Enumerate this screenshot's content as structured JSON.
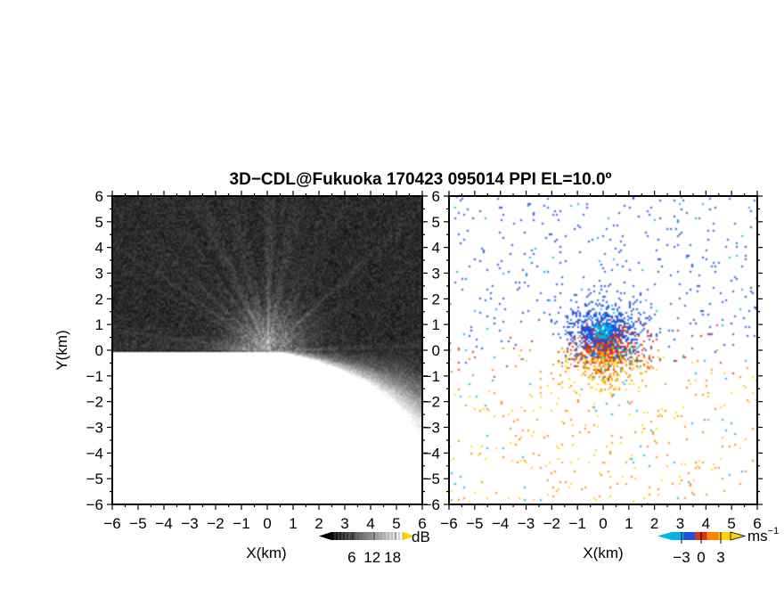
{
  "title": "3D−CDL@Fukuoka 170423 095014 PPI EL=10.0º",
  "chart_data": [
    {
      "type": "heatmap",
      "panel": "left",
      "quantity": "backscatter intensity",
      "xlabel": "X(km)",
      "ylabel": "Y(km)",
      "xlim": [
        -6,
        6
      ],
      "ylim": [
        -6,
        6
      ],
      "xticks": [
        "−6",
        "−5",
        "−4",
        "−3",
        "−2",
        "−1",
        "0",
        "1",
        "2",
        "3",
        "4",
        "5",
        "6"
      ],
      "yticks": [
        "6",
        "5",
        "4",
        "3",
        "2",
        "1",
        "0",
        "−1",
        "−2",
        "−3",
        "−4",
        "−5",
        "−6"
      ],
      "colorbar": {
        "unit": "dB",
        "ticks": [
          "6",
          "12",
          "18"
        ],
        "range": [
          0,
          21
        ],
        "colors": [
          "#000000",
          "#ffffff"
        ]
      },
      "pattern": "noisy dark background with brighter radial streaks centred near the origin (radius ~2 km)",
      "grid": false
    },
    {
      "type": "heatmap",
      "panel": "right",
      "quantity": "radial velocity",
      "xlabel": "X(km)",
      "xlim": [
        -6,
        6
      ],
      "ylim": [
        -6,
        6
      ],
      "xticks": [
        "−6",
        "−5",
        "−4",
        "−3",
        "−2",
        "−1",
        "0",
        "1",
        "2",
        "3",
        "4",
        "5",
        "6"
      ],
      "yticks": [
        "6",
        "5",
        "4",
        "3",
        "2",
        "1",
        "0",
        "−1",
        "−2",
        "−3",
        "−4",
        "−5",
        "−6"
      ],
      "colorbar": {
        "unit": "ms",
        "unit_exponent": "−1",
        "ticks": [
          "−3",
          "0",
          "3"
        ],
        "range": [
          -4.5,
          4.5
        ],
        "colors": [
          "#00b4e6",
          "#1e50dc",
          "#dc3214",
          "#ff8200",
          "#ffd200"
        ]
      },
      "pattern": "scattered pixels within ~2 km of origin: blues/cyan in the upper half, reds in between, orange/yellow in the lower half",
      "grid": false
    }
  ]
}
